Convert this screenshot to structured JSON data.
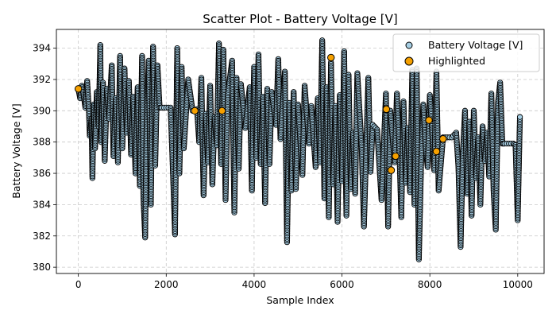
{
  "chart_data": {
    "type": "scatter",
    "title": "Scatter Plot - Battery Voltage [V]",
    "xlabel": "Sample Index",
    "ylabel": "Battery Voltage [V]",
    "xlim": [
      -500,
      10600
    ],
    "ylim": [
      379.6,
      395.2
    ],
    "xticks": [
      0,
      2000,
      4000,
      6000,
      8000,
      10000
    ],
    "yticks": [
      380,
      382,
      384,
      386,
      388,
      390,
      392,
      394
    ],
    "grid": true,
    "legend_position": "top-right",
    "colors": {
      "series_fill": "#a6cee3",
      "series_edge": "#000000",
      "highlight_fill": "#f5a000",
      "highlight_edge": "#000000",
      "grid": "#c8c8c8"
    },
    "series": [
      {
        "name": "Battery Voltage [V]",
        "marker": "circle",
        "note_values": "dense trace of ~10000 samples; values given as [x, y] envelope samples",
        "values": [
          [
            0,
            391.4
          ],
          [
            40,
            390.8
          ],
          [
            80,
            391.6
          ],
          [
            120,
            391.0
          ],
          [
            160,
            390.2
          ],
          [
            200,
            391.9
          ],
          [
            240,
            390.0
          ],
          [
            260,
            388.4
          ],
          [
            300,
            389.5
          ],
          [
            320,
            385.7
          ],
          [
            350,
            390.4
          ],
          [
            380,
            387.6
          ],
          [
            420,
            391.2
          ],
          [
            460,
            389.0
          ],
          [
            500,
            394.2
          ],
          [
            520,
            388.0
          ],
          [
            560,
            391.8
          ],
          [
            600,
            386.8
          ],
          [
            650,
            391.4
          ],
          [
            700,
            389.5
          ],
          [
            760,
            392.9
          ],
          [
            800,
            387.1
          ],
          [
            850,
            390.8
          ],
          [
            900,
            386.7
          ],
          [
            950,
            393.5
          ],
          [
            1000,
            387.6
          ],
          [
            1050,
            392.7
          ],
          [
            1100,
            388.6
          ],
          [
            1150,
            391.9
          ],
          [
            1200,
            387.2
          ],
          [
            1250,
            390.9
          ],
          [
            1300,
            386.0
          ],
          [
            1350,
            391.5
          ],
          [
            1400,
            385.2
          ],
          [
            1450,
            393.5
          ],
          [
            1480,
            384.5
          ],
          [
            1520,
            381.9
          ],
          [
            1550,
            388.6
          ],
          [
            1600,
            393.2
          ],
          [
            1650,
            384.0
          ],
          [
            1700,
            394.1
          ],
          [
            1750,
            386.5
          ],
          [
            1800,
            392.9
          ],
          [
            1850,
            390.2
          ],
          [
            1900,
            390.2
          ],
          [
            2000,
            390.2
          ],
          [
            2100,
            390.2
          ],
          [
            2150,
            386.3
          ],
          [
            2200,
            382.1
          ],
          [
            2250,
            394.0
          ],
          [
            2300,
            386.0
          ],
          [
            2350,
            392.8
          ],
          [
            2400,
            387.6
          ],
          [
            2500,
            392.0
          ],
          [
            2600,
            390.0
          ],
          [
            2700,
            390.1
          ],
          [
            2750,
            388.0
          ],
          [
            2800,
            392.1
          ],
          [
            2850,
            384.6
          ],
          [
            2900,
            389.8
          ],
          [
            2950,
            386.7
          ],
          [
            3000,
            391.6
          ],
          [
            3050,
            385.3
          ],
          [
            3100,
            389.6
          ],
          [
            3150,
            387.8
          ],
          [
            3200,
            394.3
          ],
          [
            3250,
            386.6
          ],
          [
            3300,
            393.9
          ],
          [
            3350,
            384.3
          ],
          [
            3400,
            391.0
          ],
          [
            3500,
            393.2
          ],
          [
            3550,
            383.5
          ],
          [
            3600,
            392.1
          ],
          [
            3650,
            386.3
          ],
          [
            3700,
            391.7
          ],
          [
            3800,
            388.9
          ],
          [
            3900,
            391.5
          ],
          [
            3950,
            384.9
          ],
          [
            4000,
            392.8
          ],
          [
            4050,
            387.0
          ],
          [
            4100,
            393.6
          ],
          [
            4150,
            386.6
          ],
          [
            4200,
            390.9
          ],
          [
            4250,
            384.1
          ],
          [
            4300,
            391.4
          ],
          [
            4350,
            386.6
          ],
          [
            4400,
            391.2
          ],
          [
            4500,
            389.1
          ],
          [
            4550,
            393.3
          ],
          [
            4600,
            388.2
          ],
          [
            4700,
            392.5
          ],
          [
            4750,
            381.6
          ],
          [
            4800,
            390.5
          ],
          [
            4850,
            384.9
          ],
          [
            4900,
            391.2
          ],
          [
            4950,
            385.0
          ],
          [
            5000,
            390.4
          ],
          [
            5100,
            385.9
          ],
          [
            5150,
            391.6
          ],
          [
            5250,
            387.9
          ],
          [
            5300,
            390.3
          ],
          [
            5400,
            386.4
          ],
          [
            5450,
            390.8
          ],
          [
            5500,
            386.7
          ],
          [
            5550,
            394.5
          ],
          [
            5600,
            384.4
          ],
          [
            5650,
            391.5
          ],
          [
            5700,
            383.2
          ],
          [
            5750,
            393.1
          ],
          [
            5800,
            385.3
          ],
          [
            5850,
            390.3
          ],
          [
            5900,
            382.9
          ],
          [
            5950,
            391.0
          ],
          [
            6000,
            385.5
          ],
          [
            6050,
            393.8
          ],
          [
            6100,
            383.3
          ],
          [
            6150,
            392.3
          ],
          [
            6200,
            385.0
          ],
          [
            6250,
            388.6
          ],
          [
            6300,
            384.7
          ],
          [
            6350,
            392.4
          ],
          [
            6450,
            387.5
          ],
          [
            6500,
            382.6
          ],
          [
            6600,
            392.1
          ],
          [
            6650,
            386.1
          ],
          [
            6700,
            389.1
          ],
          [
            6800,
            388.8
          ],
          [
            6900,
            384.3
          ],
          [
            7000,
            391.1
          ],
          [
            7050,
            382.6
          ],
          [
            7100,
            390.0
          ],
          [
            7200,
            386.7
          ],
          [
            7250,
            391.1
          ],
          [
            7300,
            388.0
          ],
          [
            7350,
            383.2
          ],
          [
            7400,
            390.6
          ],
          [
            7450,
            385.4
          ],
          [
            7500,
            388.9
          ],
          [
            7550,
            384.8
          ],
          [
            7600,
            392.6
          ],
          [
            7650,
            384.0
          ],
          [
            7700,
            392.7
          ],
          [
            7750,
            380.5
          ],
          [
            7800,
            386.5
          ],
          [
            7850,
            390.4
          ],
          [
            7900,
            387.8
          ],
          [
            7950,
            386.4
          ],
          [
            8000,
            391.0
          ],
          [
            8050,
            388.8
          ],
          [
            8100,
            386.2
          ],
          [
            8150,
            392.5
          ],
          [
            8200,
            384.9
          ],
          [
            8300,
            388.3
          ],
          [
            8400,
            388.3
          ],
          [
            8500,
            388.3
          ],
          [
            8600,
            388.6
          ],
          [
            8650,
            386.4
          ],
          [
            8700,
            381.3
          ],
          [
            8750,
            387.2
          ],
          [
            8800,
            390.0
          ],
          [
            8850,
            384.7
          ],
          [
            8900,
            389.3
          ],
          [
            8950,
            383.3
          ],
          [
            9000,
            390.0
          ],
          [
            9050,
            385.7
          ],
          [
            9100,
            388.3
          ],
          [
            9150,
            384.0
          ],
          [
            9200,
            389.0
          ],
          [
            9250,
            386.8
          ],
          [
            9300,
            388.6
          ],
          [
            9350,
            385.8
          ],
          [
            9400,
            391.1
          ],
          [
            9450,
            384.9
          ],
          [
            9500,
            382.4
          ],
          [
            9550,
            390.5
          ],
          [
            9600,
            391.8
          ],
          [
            9650,
            387.9
          ],
          [
            9700,
            387.9
          ],
          [
            9800,
            387.9
          ],
          [
            9900,
            387.9
          ],
          [
            9950,
            387.8
          ],
          [
            10000,
            383.0
          ],
          [
            10050,
            389.6
          ]
        ]
      },
      {
        "name": "Highlighted",
        "marker": "circle",
        "values": [
          [
            0,
            391.4
          ],
          [
            2650,
            390.0
          ],
          [
            3270,
            390.0
          ],
          [
            5750,
            393.4
          ],
          [
            7010,
            390.1
          ],
          [
            7120,
            386.2
          ],
          [
            7220,
            387.1
          ],
          [
            7980,
            389.4
          ],
          [
            8150,
            387.4
          ],
          [
            8300,
            388.2
          ]
        ]
      }
    ]
  }
}
